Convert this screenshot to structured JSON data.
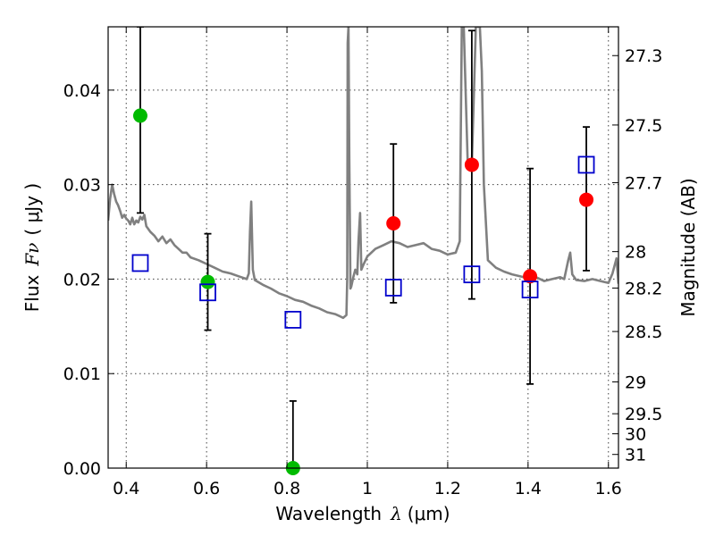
{
  "chart_data": {
    "type": "scatter",
    "title": "",
    "xlabel": "Wavelength",
    "xlabel_symbol": "λ",
    "xlabel_unit": "(μm)",
    "ylabel": "Flux",
    "ylabel_symbol": "Fν",
    "ylabel_unit": "( μJy )",
    "y2label": "Magnitude (AB)",
    "xlim": [
      0.355,
      1.625
    ],
    "ylim": [
      0.0,
      0.0467
    ],
    "grid": true,
    "x_ticks": [
      0.4,
      0.6,
      0.8,
      1.0,
      1.2,
      1.4,
      1.6
    ],
    "x_tick_labels": [
      "0.4",
      "0.6",
      "0.8",
      "1",
      "1.2",
      "1.4",
      "1.6"
    ],
    "y_ticks": [
      0.0,
      0.01,
      0.02,
      0.03,
      0.04
    ],
    "y_tick_labels": [
      "0.00",
      "0.01",
      "0.02",
      "0.03",
      "0.04"
    ],
    "mag_ticks": [
      27.3,
      27.5,
      27.7,
      28,
      28.2,
      28.5,
      29,
      29.5,
      30,
      31
    ],
    "mag_tick_labels": [
      "27.3",
      "27.5",
      "27.7",
      "28",
      "28.2",
      "28.5",
      "29",
      "29.5",
      "30",
      "31"
    ],
    "colors": {
      "template": "#808080",
      "optical": "#00bb00",
      "nir": "#ff0000",
      "model": "#0000cc",
      "errorbar": "#000000"
    },
    "series": [
      {
        "type": "line",
        "x": [
          0.355,
          0.36,
          0.365,
          0.37,
          0.375,
          0.38,
          0.385,
          0.39,
          0.395,
          0.4,
          0.405,
          0.41,
          0.415,
          0.42,
          0.425,
          0.43,
          0.435,
          0.44,
          0.445,
          0.45,
          0.46,
          0.47,
          0.48,
          0.49,
          0.5,
          0.51,
          0.52,
          0.53,
          0.54,
          0.55,
          0.56,
          0.58,
          0.6,
          0.62,
          0.64,
          0.66,
          0.68,
          0.7,
          0.705,
          0.708,
          0.711,
          0.715,
          0.72,
          0.74,
          0.76,
          0.78,
          0.8,
          0.82,
          0.84,
          0.86,
          0.88,
          0.9,
          0.92,
          0.94,
          0.948,
          0.95,
          0.951,
          0.953,
          0.955,
          0.958,
          0.96,
          0.965,
          0.97,
          0.975,
          0.978,
          0.982,
          0.985,
          0.99,
          1.0,
          1.02,
          1.04,
          1.06,
          1.08,
          1.1,
          1.12,
          1.14,
          1.16,
          1.18,
          1.2,
          1.22,
          1.23,
          1.235,
          1.24,
          1.25,
          1.26,
          1.27,
          1.28,
          1.285,
          1.29,
          1.3,
          1.32,
          1.34,
          1.36,
          1.38,
          1.4,
          1.42,
          1.44,
          1.46,
          1.48,
          1.49,
          1.5,
          1.505,
          1.51,
          1.52,
          1.54,
          1.56,
          1.58,
          1.6,
          1.61,
          1.62,
          1.625
        ],
        "y": [
          0.0262,
          0.0285,
          0.03,
          0.029,
          0.0282,
          0.0278,
          0.0272,
          0.0265,
          0.0268,
          0.0264,
          0.0262,
          0.0258,
          0.0265,
          0.0258,
          0.0262,
          0.026,
          0.0266,
          0.0263,
          0.0268,
          0.0256,
          0.025,
          0.0246,
          0.024,
          0.0245,
          0.0238,
          0.0242,
          0.0236,
          0.0232,
          0.0228,
          0.0228,
          0.0223,
          0.022,
          0.0216,
          0.0212,
          0.0208,
          0.0206,
          0.0203,
          0.02,
          0.0206,
          0.025,
          0.0282,
          0.021,
          0.0199,
          0.0194,
          0.019,
          0.0185,
          0.0182,
          0.0178,
          0.0176,
          0.0172,
          0.0169,
          0.0165,
          0.0163,
          0.0159,
          0.0162,
          0.02,
          0.045,
          0.0467,
          0.033,
          0.019,
          0.0192,
          0.0202,
          0.021,
          0.0205,
          0.024,
          0.027,
          0.021,
          0.0215,
          0.0224,
          0.0232,
          0.0236,
          0.024,
          0.0238,
          0.0234,
          0.0236,
          0.0238,
          0.0232,
          0.023,
          0.0226,
          0.0228,
          0.024,
          0.0467,
          0.0467,
          0.032,
          0.032,
          0.0467,
          0.0467,
          0.042,
          0.03,
          0.022,
          0.0212,
          0.0208,
          0.0205,
          0.0203,
          0.0201,
          0.0202,
          0.0198,
          0.02,
          0.0202,
          0.02,
          0.022,
          0.0228,
          0.0205,
          0.0199,
          0.0198,
          0.02,
          0.0198,
          0.0196,
          0.0206,
          0.0222,
          0.0195
        ]
      },
      {
        "type": "errorbar",
        "x": [
          0.435,
          0.603,
          0.815,
          1.065,
          1.26,
          1.405,
          1.545
        ],
        "y": [
          0.0373,
          0.0197,
          0.0,
          0.0259,
          0.0321,
          0.0203,
          0.0284
        ],
        "err_low": [
          0.0103,
          0.0051,
          0.0,
          0.0084,
          0.0142,
          0.0114,
          0.0075
        ],
        "err_high": [
          0.0094,
          0.0051,
          0.0071,
          0.0084,
          0.0142,
          0.0114,
          0.0077
        ]
      },
      {
        "type": "scatter",
        "marker": "circle",
        "color": "#00bb00",
        "x": [
          0.435,
          0.603,
          0.815
        ],
        "y": [
          0.0373,
          0.0197,
          0.0
        ]
      },
      {
        "type": "scatter",
        "marker": "circle",
        "color": "#ff0000",
        "x": [
          1.065,
          1.26,
          1.405,
          1.545
        ],
        "y": [
          0.0259,
          0.0321,
          0.0203,
          0.0284
        ]
      },
      {
        "type": "scatter",
        "marker": "open-square",
        "color": "#0000cc",
        "x": [
          0.435,
          0.603,
          0.815,
          1.065,
          1.26,
          1.405,
          1.545
        ],
        "y": [
          0.0217,
          0.0186,
          0.0157,
          0.0191,
          0.0205,
          0.0189,
          0.0321
        ]
      }
    ]
  }
}
